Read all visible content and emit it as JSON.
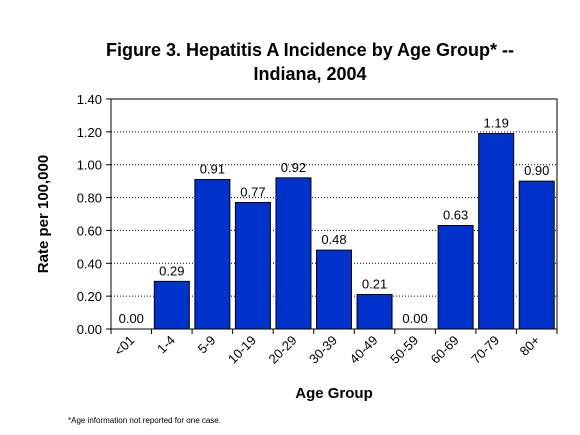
{
  "chart_data": {
    "type": "bar",
    "title_line1": "Figure 3.  Hepatitis A Incidence by Age Group* --",
    "title_line2": "Indiana, 2004",
    "xlabel": "Age Group",
    "ylabel": "Rate per 100,000",
    "categories": [
      "<01",
      "1-4",
      "5-9",
      "10-19",
      "20-29",
      "30-39",
      "40-49",
      "50-59",
      "60-69",
      "70-79",
      "80+"
    ],
    "values": [
      0.0,
      0.29,
      0.91,
      0.77,
      0.92,
      0.48,
      0.21,
      0.0,
      0.63,
      1.19,
      0.9
    ],
    "data_labels": [
      "0.00",
      "0.29",
      "0.91",
      "0.77",
      "0.92",
      "0.48",
      "0.21",
      "0.00",
      "0.63",
      "1.19",
      "0.90"
    ],
    "yticks": [
      0.0,
      0.2,
      0.4,
      0.6,
      0.8,
      1.0,
      1.2,
      1.4
    ],
    "ytick_labels": [
      "0.00",
      "0.20",
      "0.40",
      "0.60",
      "0.80",
      "1.00",
      "1.20",
      "1.40"
    ],
    "ylim": [
      0,
      1.4
    ],
    "grid": true,
    "grid_style": "dotted",
    "legend": false,
    "bar_color": "#0033cc",
    "footnote": "*Age information not reported for one case."
  }
}
